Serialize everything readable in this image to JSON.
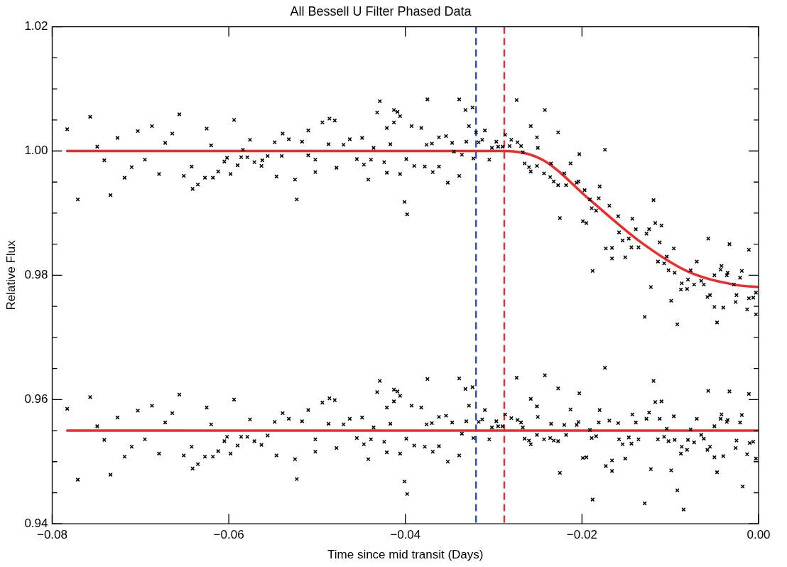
{
  "chart_data": {
    "type": "scatter",
    "title": "All Bessell U Filter Phased Data",
    "xlabel": "Time since mid transit (Days)",
    "ylabel": "Relative Flux",
    "xlim": [
      -0.08,
      0.0
    ],
    "ylim": [
      0.94,
      1.02
    ],
    "xticks": [
      {
        "value": -0.08,
        "label": "−0.08"
      },
      {
        "value": -0.06,
        "label": "−0.06"
      },
      {
        "value": -0.04,
        "label": "−0.04"
      },
      {
        "value": -0.02,
        "label": "−0.02"
      },
      {
        "value": 0,
        "label": "0.00"
      }
    ],
    "yticks": [
      {
        "value": 0.94,
        "label": "0.94"
      },
      {
        "value": 0.945,
        "label": null
      },
      {
        "value": 0.95,
        "label": null
      },
      {
        "value": 0.955,
        "label": null
      },
      {
        "value": 0.96,
        "label": "0.96"
      },
      {
        "value": 0.965,
        "label": null
      },
      {
        "value": 0.97,
        "label": null
      },
      {
        "value": 0.975,
        "label": null
      },
      {
        "value": 0.98,
        "label": "0.98"
      },
      {
        "value": 0.985,
        "label": null
      },
      {
        "value": 0.99,
        "label": null
      },
      {
        "value": 0.995,
        "label": null
      },
      {
        "value": 1.0,
        "label": "1.00"
      },
      {
        "value": 1.005,
        "label": null
      },
      {
        "value": 1.01,
        "label": null
      },
      {
        "value": 1.015,
        "label": null
      },
      {
        "value": 1.02,
        "label": "1.02"
      }
    ],
    "grid": false,
    "legend": false,
    "ref_lines": [
      {
        "axis": "x",
        "value": -0.032,
        "color": "#3050c0",
        "line_style": "dashed"
      },
      {
        "axis": "x",
        "value": -0.0288,
        "color": "#e83030",
        "line_style": "dashed"
      }
    ],
    "series": [
      {
        "marker": "cross",
        "color": "#000000",
        "x": [
          -0.0783,
          -0.0771,
          -0.0757,
          -0.0749,
          -0.0741,
          -0.0734,
          -0.0726,
          -0.0718,
          -0.071,
          -0.0703,
          -0.0695,
          -0.0687,
          -0.0679,
          -0.0672,
          -0.0664,
          -0.0656,
          -0.0651,
          -0.0642,
          -0.0641,
          -0.0635,
          -0.0627,
          -0.0625,
          -0.062,
          -0.0618,
          -0.0612,
          -0.0605,
          -0.0602,
          -0.0598,
          -0.0594,
          -0.059,
          -0.0586,
          -0.0584,
          -0.0579,
          -0.0576,
          -0.0571,
          -0.0563,
          -0.0562,
          -0.0556,
          -0.0548,
          -0.0546,
          -0.054,
          -0.0539,
          -0.0532,
          -0.0525,
          -0.0523,
          -0.0517,
          -0.051,
          -0.051,
          -0.0502,
          -0.0502,
          -0.0494,
          -0.0487,
          -0.0486,
          -0.048,
          -0.0478,
          -0.047,
          -0.0463,
          -0.0455,
          -0.0449,
          -0.0447,
          -0.0442,
          -0.0439,
          -0.0436,
          -0.0432,
          -0.0429,
          -0.0424,
          -0.0421,
          -0.0421,
          -0.0417,
          -0.0413,
          -0.0413,
          -0.0409,
          -0.0406,
          -0.0406,
          -0.0401,
          -0.0398,
          -0.0399,
          -0.0393,
          -0.039,
          -0.0382,
          -0.0378,
          -0.0376,
          -0.0375,
          -0.037,
          -0.0369,
          -0.0362,
          -0.0362,
          -0.0354,
          -0.0352,
          -0.0347,
          -0.0345,
          -0.0339,
          -0.0339,
          -0.0336,
          -0.0332,
          -0.0331,
          -0.0328,
          -0.0324,
          -0.0323,
          -0.032,
          -0.0317,
          -0.0313,
          -0.031,
          -0.0305,
          -0.0302,
          -0.0297,
          -0.0295,
          -0.029,
          -0.0287,
          -0.0282,
          -0.028,
          -0.0274,
          -0.0273,
          -0.0269,
          -0.0267,
          -0.0265,
          -0.026,
          -0.0258,
          -0.0258,
          -0.0251,
          -0.0251,
          -0.025,
          -0.0243,
          -0.0242,
          -0.0236,
          -0.0235,
          -0.0232,
          -0.0227,
          -0.0227,
          -0.0225,
          -0.022,
          -0.0218,
          -0.0213,
          -0.0206,
          -0.0204,
          -0.0203,
          -0.0199,
          -0.0197,
          -0.0195,
          -0.0191,
          -0.0189,
          -0.0188,
          -0.0184,
          -0.0181,
          -0.018,
          -0.0174,
          -0.0173,
          -0.0169,
          -0.0166,
          -0.0166,
          -0.0159,
          -0.0158,
          -0.0154,
          -0.0151,
          -0.0147,
          -0.0144,
          -0.0143,
          -0.0139,
          -0.0136,
          -0.0129,
          -0.0127,
          -0.0124,
          -0.0122,
          -0.0119,
          -0.0117,
          -0.0114,
          -0.0112,
          -0.011,
          -0.0107,
          -0.0104,
          -0.0102,
          -0.0099,
          -0.0096,
          -0.0095,
          -0.0092,
          -0.0088,
          -0.0087,
          -0.0081,
          -0.008,
          -0.0077,
          -0.0073,
          -0.007,
          -0.0065,
          -0.0062,
          -0.0058,
          -0.0057,
          -0.0055,
          -0.005,
          -0.005,
          -0.0047,
          -0.0043,
          -0.0042,
          -0.004,
          -0.0036,
          -0.0035,
          -0.0033,
          -0.0028,
          -0.0026,
          -0.0025,
          -0.0021,
          -0.0019,
          -0.0013,
          -0.0011,
          -0.0011,
          -0.0006,
          -0.0003,
          -0.0003
        ],
        "values": [
          1.0035,
          0.9922,
          1.0055,
          1.0007,
          0.9985,
          0.9929,
          1.0021,
          0.9957,
          0.9974,
          1.0032,
          0.9986,
          1.004,
          0.9963,
          1.0013,
          1.0028,
          1.0059,
          0.996,
          0.9975,
          0.9939,
          0.9946,
          0.9957,
          1.0036,
          1.0009,
          0.9957,
          0.9967,
          0.9983,
          0.9989,
          0.9963,
          1.005,
          0.9977,
          0.999,
          1.0002,
          0.999,
          1.0018,
          0.9982,
          0.9976,
          0.9985,
          0.9992,
          1.0014,
          0.9959,
          0.9992,
          1.0028,
          1.0019,
          0.9954,
          0.9922,
          1.0015,
          1.0033,
          0.9993,
          0.9986,
          0.9966,
          1.0046,
          1.0011,
          1.0052,
          1.0049,
          0.9973,
          1.001,
          1.0019,
          0.9987,
          1.0021,
          0.9978,
          0.9954,
          0.9986,
          1.0005,
          1.0062,
          1.008,
          0.9982,
          0.9965,
          1.0037,
          1.0011,
          1.0046,
          1.0066,
          1.0063,
          0.9963,
          1.0056,
          0.9918,
          0.9898,
          0.9987,
          1.004,
          0.9976,
          1.0037,
          0.9975,
          1.001,
          1.0083,
          1.0012,
          0.9966,
          0.9975,
          1.0022,
          1.0024,
          0.9949,
          1.0013,
          0.9999,
          1.0083,
          0.996,
          0.9994,
          1.0066,
          1.0015,
          1.004,
          1.007,
          0.9988,
          1.003,
          1.0014,
          1.0018,
          1.0033,
          0.9986,
          1.0005,
          1.0015,
          1.0007,
          1.0007,
          1.0026,
          1.0008,
          1.0018,
          1.0082,
          1.0014,
          1.0008,
          0.9998,
          0.998,
          0.9974,
          0.9967,
          1.004,
          0.9976,
          1.0022,
          1.0005,
          0.9964,
          1.0066,
          0.9958,
          0.998,
          0.9951,
          0.9945,
          1.003,
          0.9892,
          0.9964,
          0.9945,
          0.998,
          0.9949,
          0.9951,
          0.9995,
          0.9887,
          0.9937,
          0.9884,
          0.9922,
          0.9908,
          0.9807,
          0.9904,
          0.9924,
          0.9943,
          1.0002,
          0.9843,
          0.9912,
          0.9844,
          0.9827,
          0.9895,
          0.9869,
          0.9856,
          0.9829,
          0.9859,
          0.9845,
          0.9891,
          0.9874,
          0.9845,
          0.9733,
          0.9867,
          0.9874,
          0.9781,
          0.9921,
          0.9884,
          0.9822,
          0.9853,
          0.988,
          0.9819,
          0.983,
          0.9808,
          0.9759,
          0.9843,
          0.9804,
          0.9721,
          0.9777,
          0.9787,
          0.9778,
          0.9793,
          0.9808,
          0.9785,
          0.9822,
          0.9791,
          0.9785,
          0.9765,
          0.9859,
          0.9768,
          0.98,
          0.9749,
          0.9724,
          0.9809,
          0.9815,
          0.9748,
          0.98,
          0.9804,
          0.985,
          0.9785,
          0.9757,
          0.9768,
          0.9796,
          0.9807,
          0.9745,
          0.9841,
          0.9763,
          0.9764,
          0.9737,
          0.9772
        ]
      },
      {
        "type": "line",
        "marker": "none",
        "color": "#ee2a2a",
        "line_style": "solid",
        "x": [
          -0.0783,
          -0.0288,
          -0.0245,
          -0.019,
          -0.0135,
          -0.008,
          -0.0024,
          0
        ],
        "values": [
          1.0,
          1.0,
          0.9986,
          0.992,
          0.9855,
          0.9806,
          0.9784,
          0.9781
        ]
      },
      {
        "marker": "cross",
        "color": "#000000",
        "x": [
          -0.0783,
          -0.0771,
          -0.0757,
          -0.0749,
          -0.0741,
          -0.0734,
          -0.0726,
          -0.0718,
          -0.071,
          -0.0703,
          -0.0695,
          -0.0687,
          -0.0679,
          -0.0672,
          -0.0664,
          -0.0656,
          -0.0651,
          -0.0642,
          -0.0641,
          -0.0635,
          -0.0627,
          -0.0625,
          -0.062,
          -0.0618,
          -0.0612,
          -0.0605,
          -0.0602,
          -0.0598,
          -0.0594,
          -0.059,
          -0.0586,
          -0.0579,
          -0.0576,
          -0.0571,
          -0.0563,
          -0.0556,
          -0.0548,
          -0.0546,
          -0.0539,
          -0.0532,
          -0.0525,
          -0.0523,
          -0.0517,
          -0.051,
          -0.0502,
          -0.0502,
          -0.0494,
          -0.0487,
          -0.0486,
          -0.048,
          -0.0478,
          -0.047,
          -0.0463,
          -0.0455,
          -0.0449,
          -0.0447,
          -0.0442,
          -0.0439,
          -0.0436,
          -0.0432,
          -0.0429,
          -0.0424,
          -0.0421,
          -0.0421,
          -0.0417,
          -0.0413,
          -0.0413,
          -0.0409,
          -0.0406,
          -0.0406,
          -0.0401,
          -0.0398,
          -0.0399,
          -0.0393,
          -0.039,
          -0.0382,
          -0.0378,
          -0.0376,
          -0.0375,
          -0.037,
          -0.0369,
          -0.0362,
          -0.0362,
          -0.0354,
          -0.0352,
          -0.0347,
          -0.0339,
          -0.0339,
          -0.0336,
          -0.0332,
          -0.0331,
          -0.0328,
          -0.0324,
          -0.0323,
          -0.0317,
          -0.0313,
          -0.031,
          -0.0305,
          -0.0302,
          -0.0297,
          -0.0295,
          -0.029,
          -0.0287,
          -0.028,
          -0.0274,
          -0.0273,
          -0.0269,
          -0.0267,
          -0.0265,
          -0.026,
          -0.0258,
          -0.0258,
          -0.0251,
          -0.0251,
          -0.025,
          -0.0243,
          -0.0242,
          -0.0236,
          -0.0235,
          -0.0232,
          -0.0227,
          -0.0227,
          -0.0225,
          -0.022,
          -0.0218,
          -0.0213,
          -0.0206,
          -0.0204,
          -0.0203,
          -0.0199,
          -0.0195,
          -0.0191,
          -0.0189,
          -0.0188,
          -0.0184,
          -0.0181,
          -0.018,
          -0.0174,
          -0.0173,
          -0.0169,
          -0.0166,
          -0.0166,
          -0.0159,
          -0.0158,
          -0.0154,
          -0.0151,
          -0.0147,
          -0.0144,
          -0.0143,
          -0.0139,
          -0.0136,
          -0.0129,
          -0.0127,
          -0.0124,
          -0.0122,
          -0.0119,
          -0.0117,
          -0.0114,
          -0.0112,
          -0.011,
          -0.0107,
          -0.0104,
          -0.0102,
          -0.0099,
          -0.0096,
          -0.0095,
          -0.0092,
          -0.0088,
          -0.0087,
          -0.0085,
          -0.0081,
          -0.008,
          -0.0077,
          -0.0073,
          -0.007,
          -0.0065,
          -0.0062,
          -0.0058,
          -0.0057,
          -0.0055,
          -0.005,
          -0.005,
          -0.0047,
          -0.0043,
          -0.0042,
          -0.004,
          -0.0036,
          -0.0035,
          -0.0033,
          -0.0026,
          -0.0025,
          -0.0021,
          -0.0019,
          -0.0018,
          -0.0013,
          -0.0011,
          -0.001,
          -0.0006,
          -0.0003
        ],
        "values": [
          0.9585,
          0.9471,
          0.9604,
          0.9557,
          0.9535,
          0.9479,
          0.9571,
          0.9508,
          0.9524,
          0.9582,
          0.9536,
          0.959,
          0.9513,
          0.9563,
          0.9578,
          0.9608,
          0.951,
          0.9524,
          0.9489,
          0.9496,
          0.9508,
          0.9587,
          0.956,
          0.9508,
          0.9517,
          0.9533,
          0.954,
          0.9513,
          0.96,
          0.9526,
          0.954,
          0.954,
          0.9568,
          0.9533,
          0.9527,
          0.9542,
          0.9564,
          0.951,
          0.9578,
          0.9569,
          0.9504,
          0.9472,
          0.9565,
          0.9583,
          0.9536,
          0.9516,
          0.9595,
          0.9561,
          0.9602,
          0.9599,
          0.9522,
          0.956,
          0.9569,
          0.9538,
          0.9571,
          0.9528,
          0.9504,
          0.9536,
          0.9555,
          0.9612,
          0.963,
          0.9532,
          0.9515,
          0.9587,
          0.9561,
          0.9597,
          0.9616,
          0.9613,
          0.9513,
          0.9606,
          0.9468,
          0.9448,
          0.9537,
          0.959,
          0.9526,
          0.9587,
          0.9524,
          0.956,
          0.9633,
          0.9562,
          0.9516,
          0.9525,
          0.9572,
          0.9574,
          0.95,
          0.9563,
          0.9634,
          0.951,
          0.9545,
          0.9617,
          0.9565,
          0.959,
          0.962,
          0.9538,
          0.9564,
          0.9568,
          0.9583,
          0.9536,
          0.9555,
          0.9565,
          0.9557,
          0.9557,
          0.9576,
          0.957,
          0.9635,
          0.9567,
          0.9563,
          0.9555,
          0.9537,
          0.9534,
          0.9528,
          0.9601,
          0.9543,
          0.9589,
          0.9572,
          0.9536,
          0.9639,
          0.9538,
          0.9561,
          0.9534,
          0.9533,
          0.9618,
          0.9482,
          0.9559,
          0.9543,
          0.9584,
          0.9559,
          0.9564,
          0.961,
          0.9506,
          0.9507,
          0.9551,
          0.9538,
          0.9439,
          0.9541,
          0.9563,
          0.9583,
          0.9651,
          0.9493,
          0.9566,
          0.9502,
          0.9485,
          0.9562,
          0.9536,
          0.9528,
          0.9505,
          0.9539,
          0.9529,
          0.9576,
          0.9563,
          0.9536,
          0.9433,
          0.9569,
          0.9579,
          0.9488,
          0.963,
          0.9596,
          0.9536,
          0.9569,
          0.9597,
          0.954,
          0.9553,
          0.9533,
          0.9486,
          0.9573,
          0.9535,
          0.9454,
          0.9513,
          0.9524,
          0.9423,
          0.9519,
          0.9535,
          0.9552,
          0.9531,
          0.9569,
          0.9543,
          0.9537,
          0.9519,
          0.9614,
          0.9524,
          0.9557,
          0.9507,
          0.9483,
          0.9569,
          0.9576,
          0.9509,
          0.9564,
          0.9567,
          0.9613,
          0.9522,
          0.9534,
          0.9563,
          0.9575,
          0.946,
          0.9512,
          0.9609,
          0.953,
          0.9532,
          0.9505
        ]
      },
      {
        "type": "line",
        "marker": "none",
        "color": "#ee2a2a",
        "line_style": "solid",
        "x": [
          -0.0783,
          0
        ],
        "values": [
          0.955,
          0.955
        ]
      }
    ]
  }
}
